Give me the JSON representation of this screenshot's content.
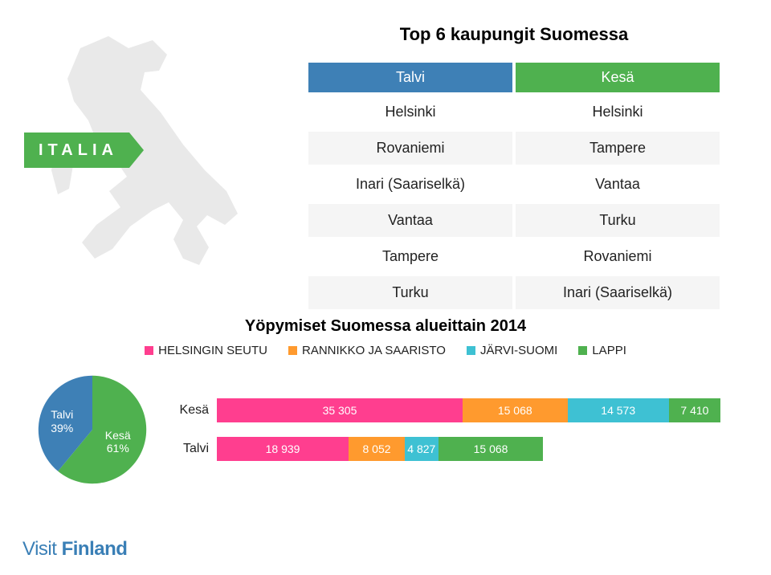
{
  "colors": {
    "talvi_header": "#3e80b6",
    "kesa_header": "#4fb14f",
    "stripe_a": "#f5f5f5",
    "stripe_b": "#ffffff",
    "map_fill": "#e9e9e9",
    "ribbon": "#4fb14f",
    "series": {
      "helsinki": "#ff3e8f",
      "rannikko": "#ff9a2e",
      "jarvi": "#3ec1d3",
      "lappi": "#4fb14f"
    },
    "pie": {
      "kesa": "#4fb14f",
      "talvi": "#3e80b6"
    },
    "logo": "#3a7fb6"
  },
  "ribbon_label": "ITALIA",
  "table": {
    "title": "Top 6 kaupungit Suomessa",
    "headers": {
      "talvi": "Talvi",
      "kesa": "Kesä"
    },
    "rows": [
      {
        "talvi": "Helsinki",
        "kesa": "Helsinki"
      },
      {
        "talvi": "Rovaniemi",
        "kesa": "Tampere"
      },
      {
        "talvi": "Inari (Saariselkä)",
        "kesa": "Vantaa"
      },
      {
        "talvi": "Vantaa",
        "kesa": "Turku"
      },
      {
        "talvi": "Tampere",
        "kesa": "Rovaniemi"
      },
      {
        "talvi": "Turku",
        "kesa": "Inari (Saariselkä)"
      }
    ]
  },
  "chart": {
    "title": "Yöpymiset Suomessa alueittain 2014",
    "legend": [
      {
        "label": "HELSINGIN SEUTU",
        "color_key": "helsinki"
      },
      {
        "label": "RANNIKKO JA SAARISTO",
        "color_key": "rannikko"
      },
      {
        "label": "JÄRVI-SUOMI",
        "color_key": "jarvi"
      },
      {
        "label": "LAPPI",
        "color_key": "lappi"
      }
    ],
    "axis_max": 75000,
    "rows": [
      {
        "label": "Kesä",
        "segments": [
          {
            "value": 35305,
            "text": "35 305",
            "color_key": "helsinki"
          },
          {
            "value": 15068,
            "text": "15 068",
            "color_key": "rannikko"
          },
          {
            "value": 14573,
            "text": "14 573",
            "color_key": "jarvi"
          },
          {
            "value": 7410,
            "text": "7 410",
            "color_key": "lappi"
          }
        ]
      },
      {
        "label": "Talvi",
        "segments": [
          {
            "value": 18939,
            "text": "18 939",
            "color_key": "helsinki"
          },
          {
            "value": 8052,
            "text": "8 052",
            "color_key": "rannikko"
          },
          {
            "value": 4827,
            "text": "4 827",
            "color_key": "jarvi"
          },
          {
            "value": 15068,
            "text": "15 068",
            "color_key": "lappi"
          }
        ]
      }
    ]
  },
  "pie": {
    "slices": [
      {
        "label": "Kesä",
        "pct": 61,
        "color_key": "kesa"
      },
      {
        "label": "Talvi",
        "pct": 39,
        "color_key": "talvi"
      }
    ]
  },
  "logo": {
    "pre": "Visit ",
    "post": "Finland"
  }
}
